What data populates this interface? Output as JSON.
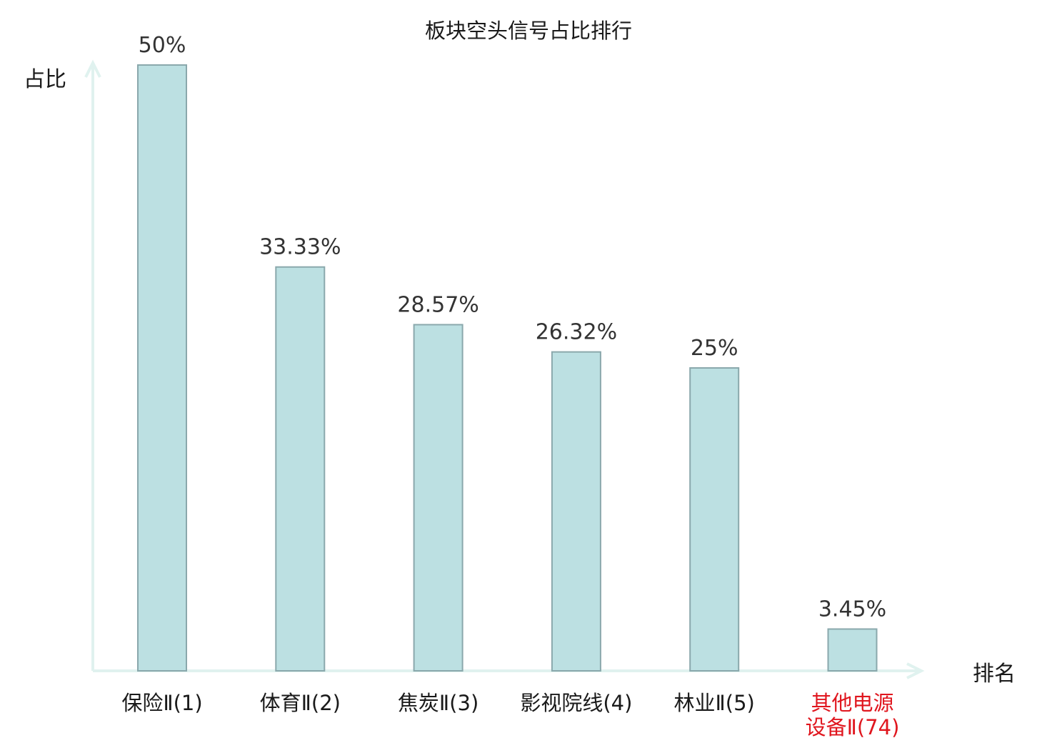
{
  "chart_data": {
    "type": "bar",
    "title": "板块空头信号占比排行",
    "xlabel": "排名",
    "ylabel": "占比",
    "categories": [
      [
        "保险Ⅱ(1)"
      ],
      [
        "体育Ⅱ(2)"
      ],
      [
        "焦炭Ⅱ(3)"
      ],
      [
        "影视院线(4)"
      ],
      [
        "林业Ⅱ(5)"
      ],
      [
        "其他电源",
        "设备Ⅱ(74)"
      ]
    ],
    "values": [
      50,
      33.33,
      28.57,
      26.32,
      25,
      3.45
    ],
    "value_labels": [
      "50%",
      "33.33%",
      "28.57%",
      "26.32%",
      "25%",
      "3.45%"
    ],
    "highlight_index": 5,
    "ylim": [
      0,
      50
    ],
    "grid": false,
    "legend": "none"
  },
  "colors": {
    "bar_fill": "#bce0e2",
    "bar_stroke": "#8aa8ac",
    "axis": "#e0f2ef",
    "text": "#1a1a1a",
    "value_text": "#333333",
    "highlight": "#e0161e"
  }
}
